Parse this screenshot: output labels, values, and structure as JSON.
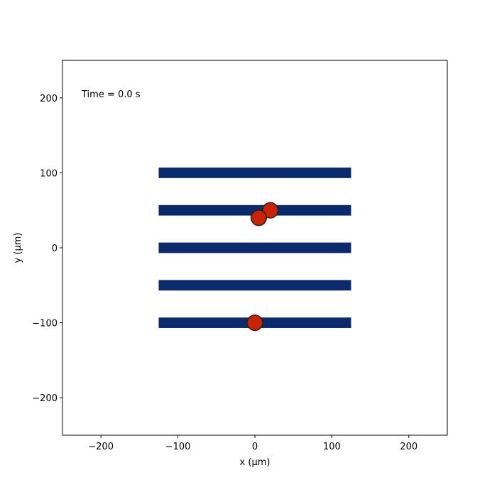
{
  "chart_data": {
    "type": "scatter",
    "title": "",
    "annotation": "Time = 0.0 s",
    "xlabel": "x (μm)",
    "ylabel": "y (μm)",
    "xlim": [
      -250,
      250
    ],
    "ylim": [
      -250,
      250
    ],
    "xticks": [
      -200,
      -100,
      0,
      100,
      200
    ],
    "xtick_labels": [
      "−200",
      "−100",
      "0",
      "100",
      "200"
    ],
    "yticks": [
      -200,
      -100,
      0,
      100,
      200
    ],
    "ytick_labels": [
      "−200",
      "−100",
      "0",
      "100",
      "200"
    ],
    "grid": false,
    "stripes": {
      "color": "#0a2a6e",
      "x_start": -125,
      "x_end": 125,
      "y_centers": [
        100,
        50,
        0,
        -50,
        -100
      ],
      "thickness": 14
    },
    "particles": {
      "color": "#cc2200",
      "edge_color": "#222222",
      "radius": 10,
      "points": [
        {
          "x": 20,
          "y": 50
        },
        {
          "x": 5,
          "y": 40
        },
        {
          "x": 0,
          "y": -100
        }
      ]
    }
  }
}
